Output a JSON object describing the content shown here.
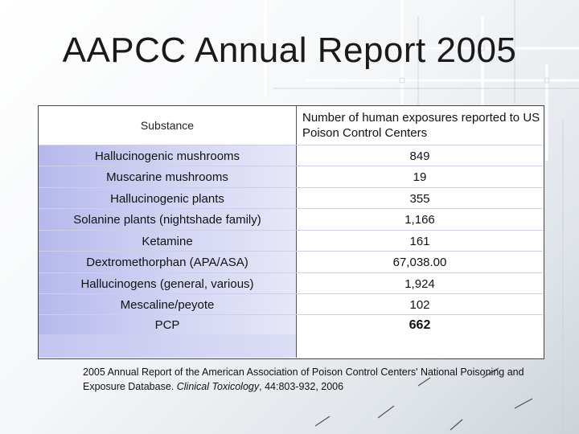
{
  "title": "AAPCC Annual Report 2005",
  "table": {
    "header": {
      "substance": "Substance",
      "exposures": "Number of human exposures reported to US Poison Control Centers"
    },
    "rows": [
      {
        "substance": "Hallucinogenic mushrooms",
        "value": "849"
      },
      {
        "substance": "Muscarine mushrooms",
        "value": "19"
      },
      {
        "substance": "Hallucinogenic plants",
        "value": "355"
      },
      {
        "substance": "Solanine plants (nightshade family)",
        "value": "1,166"
      },
      {
        "substance": "Ketamine",
        "value": "161"
      },
      {
        "substance": "Dextromethorphan (APA/ASA)",
        "value": "67,038.00"
      },
      {
        "substance": "Hallucinogens (general, various)",
        "value": "1,924"
      },
      {
        "substance": "Mescaline/peyote",
        "value": "102"
      },
      {
        "substance": "PCP",
        "value": "662"
      }
    ]
  },
  "citation": {
    "text_before": "2005 Annual Report of the American Association of Poison Control Centers' National Poisoning and Exposure Database. ",
    "journal": "Clinical Toxicology",
    "text_after": ", 44:803-932, 2006"
  }
}
